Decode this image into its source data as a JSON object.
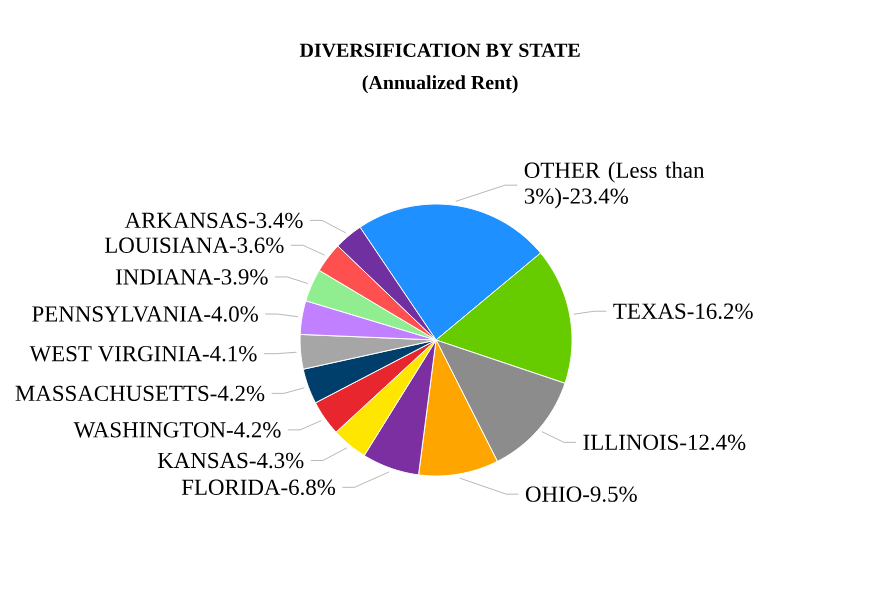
{
  "chart_data": {
    "type": "pie",
    "title": "DIVERSIFICATION BY STATE",
    "subtitle": "(Annualized Rent)",
    "categories": [
      "OTHER (Less than 3%)-23.4%",
      "TEXAS-16.2%",
      "ILLINOIS-12.4%",
      "OHIO-9.5%",
      "FLORIDA-6.8%",
      "KANSAS-4.3%",
      "WASHINGTON-4.2%",
      "MASSACHUSETTS-4.2%",
      "WEST VIRGINIA-4.1%",
      "PENNSYLVANIA-4.0%",
      "INDIANA-3.9%",
      "LOUISIANA-3.6%",
      "ARKANSAS-3.4%"
    ],
    "values": [
      23.4,
      16.2,
      12.4,
      9.5,
      6.8,
      4.3,
      4.2,
      4.2,
      4.1,
      4.0,
      3.9,
      3.6,
      3.4
    ],
    "colors": [
      "#1e90ff",
      "#66cc00",
      "#8c8c8c",
      "#ffa500",
      "#7b2fa0",
      "#ffe600",
      "#e8262d",
      "#003f6b",
      "#a6a6a6",
      "#c080ff",
      "#90ee90",
      "#ff5050",
      "#7030a0"
    ]
  }
}
